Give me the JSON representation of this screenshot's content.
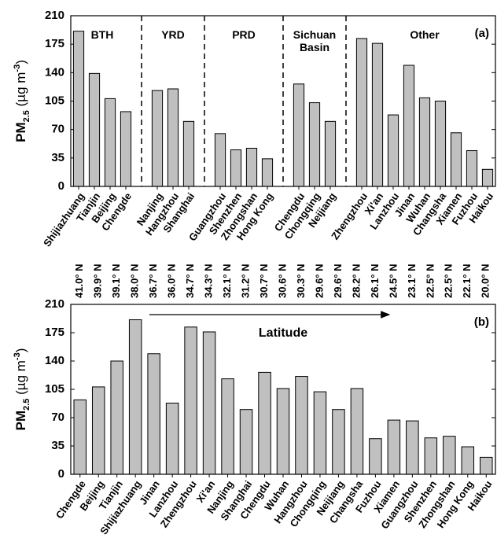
{
  "chart_data": [
    {
      "type": "bar",
      "panel_label": "(a)",
      "ylabel": [
        "PM",
        "2.5",
        " (µg m",
        "-3",
        ")"
      ],
      "categories": [
        "Shijiazhuang",
        "Tianjin",
        "Beijing",
        "Chengde",
        null,
        "Nanjing",
        "Hangzhou",
        "Shanghai",
        null,
        "Guangzhou",
        "Shenzhen",
        "Zhongshan",
        "Hong Kong",
        null,
        "Chengdu",
        "Chongqing",
        "Neijiang",
        null,
        "Zhengzhou",
        "Xi'an",
        "Lanzhou",
        "Jinan",
        "Wuhan",
        "Changsha",
        "Xiamen",
        "Fuzhou",
        "Haikou"
      ],
      "values": [
        191,
        139,
        108,
        92,
        null,
        118,
        120,
        80,
        null,
        65,
        45,
        47,
        34,
        null,
        126,
        103,
        80,
        null,
        182,
        176,
        88,
        149,
        109,
        105,
        66,
        44,
        21
      ],
      "groups": [
        "BTH",
        "YRD",
        "PRD",
        "Sichuan Basin",
        "Other"
      ],
      "color": "#c0c0c0",
      "ylim": [
        0,
        210
      ],
      "yticks": [
        0,
        35,
        70,
        105,
        140,
        175,
        210
      ]
    },
    {
      "type": "bar",
      "panel_label": "(b)",
      "ylabel": [
        "PM",
        "2.5",
        " (µg m",
        "-3",
        ")"
      ],
      "categories": [
        "Chengde",
        "Beijing",
        "Tianjin",
        "Shijiazhuang",
        "Jinan",
        "Lanzhou",
        "Zhengzhou",
        "Xi'an",
        "Nanjing",
        "Shanghai",
        "Chengdu",
        "Wuhan",
        "Hangzhou",
        "Chongqing",
        "Neijiang",
        "Changsha",
        "Fuzhou",
        "Xiamen",
        "Guangzhou",
        "Shenzhen",
        "Zhongshan",
        "Hong Kong",
        "Haikou"
      ],
      "values": [
        92,
        108,
        140,
        191,
        149,
        88,
        182,
        176,
        118,
        80,
        126,
        106,
        121,
        102,
        80,
        106,
        44,
        67,
        66,
        45,
        47,
        34,
        21
      ],
      "top_labels": [
        "41.0° N",
        "39.9° N",
        "39.1° N",
        "38.0° N",
        "36.7° N",
        "36.0° N",
        "34.7° N",
        "34.3° N",
        "32.1° N",
        "31.2° N",
        "30.7° N",
        "30.6° N",
        "30.3° N",
        "29.6° N",
        "29.6° N",
        "28.2° N",
        "26.1° N",
        "24.5° N",
        "23.1° N",
        "22.5° N",
        "22.5° N",
        "22.1° N",
        "20.0° N"
      ],
      "annotation": "Latitude",
      "color": "#c0c0c0",
      "ylim": [
        0,
        210
      ],
      "yticks": [
        0,
        35,
        70,
        105,
        140,
        175,
        210
      ]
    }
  ]
}
